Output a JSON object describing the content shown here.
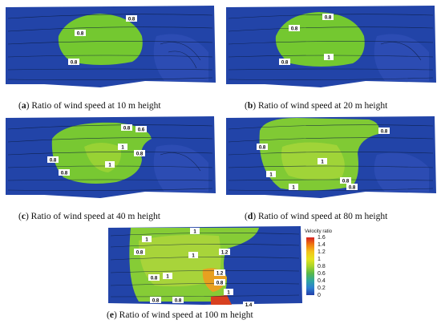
{
  "panels": [
    {
      "id": "a",
      "letter": "a",
      "caption": "Ratio of wind speed at 10 m height",
      "labels": [
        "0.8",
        "0.8",
        "0.8"
      ]
    },
    {
      "id": "b",
      "letter": "b",
      "caption": "Ratio of wind speed at 20 m height",
      "labels": [
        "0.8",
        "0.8",
        "0.8",
        "1"
      ]
    },
    {
      "id": "c",
      "letter": "c",
      "caption": "Ratio of wind speed at 40 m height",
      "labels": [
        "0.8",
        "0.6",
        "1",
        "0.8",
        "1",
        "0.8",
        "0.8"
      ]
    },
    {
      "id": "d",
      "letter": "d",
      "caption": "Ratio of wind speed at 80 m height",
      "labels": [
        "0.8",
        "0.8",
        "1",
        "1",
        "0.8",
        "0.8",
        "1"
      ]
    },
    {
      "id": "e",
      "letter": "e",
      "caption": "Ratio of wind speed at 100 m height",
      "labels": [
        "1",
        "1",
        "0.8",
        "1",
        "1.2",
        "1",
        "1.2",
        "0.8",
        "0.8",
        "1",
        "0.8",
        "0.8",
        "1.4"
      ]
    }
  ],
  "legend": {
    "title": "Velocity ratio",
    "ticks": [
      "1.6",
      "1.4",
      "1.2",
      "1",
      "0.8",
      "0.6",
      "0.4",
      "0.2",
      "0"
    ],
    "colors": [
      "#d62020",
      "#f07a10",
      "#f2c41a",
      "#e6e41e",
      "#a8d42a",
      "#58b84a",
      "#2fa6a0",
      "#2c7fd0",
      "#233da8"
    ]
  }
}
